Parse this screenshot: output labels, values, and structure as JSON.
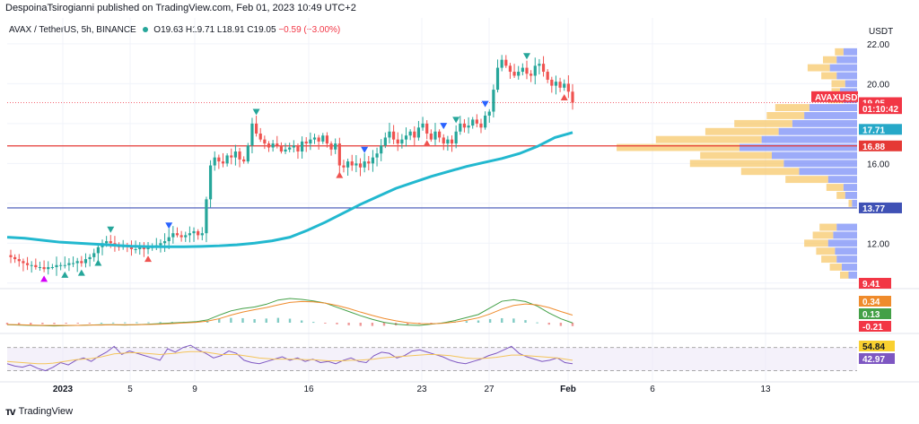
{
  "header": {
    "caption": "DespoinaTsirogianni published on TradingView.com, Feb 01, 2023 10:49 UTC+2",
    "symbol": "AVAX / TetherUS, 5h, BINANCE",
    "open": "O19.63",
    "high": "H19.71",
    "low": "L18.91",
    "close": "C19.05",
    "change": "−0.59 (−3.00%)"
  },
  "footer": {
    "logo_text": "TradingView"
  },
  "colors": {
    "up": "#26a69a",
    "down": "#ef5350",
    "ma": "#22b8cf",
    "support_red": "#e53935",
    "support_blue": "#3f51b5",
    "macd_line": "#43a047",
    "signal_line": "#ef8b2c",
    "rsi_line": "#7e57c2",
    "rsi_ma": "#f4c45a",
    "grid": "#f0f3fa"
  },
  "chart_data": [
    {
      "type": "candlestick",
      "panel": "price",
      "y_axis_title": "USDT",
      "ylim": [
        9.9,
        22.4
      ],
      "yticks": [
        "22.00",
        "20.00",
        "16.00",
        "12.00"
      ],
      "xticks": [
        "2023",
        "5",
        "9",
        "16",
        "23",
        "27",
        "Feb",
        "6",
        "13"
      ],
      "closes": [
        11.3,
        11.2,
        11.1,
        11.0,
        10.9,
        10.9,
        10.8,
        10.8,
        10.7,
        10.8,
        10.8,
        10.9,
        10.9,
        10.9,
        11.0,
        11.0,
        11.1,
        11.0,
        11.2,
        11.3,
        11.5,
        11.8,
        12.0,
        12.1,
        12.0,
        11.9,
        11.8,
        11.9,
        11.8,
        11.7,
        11.7,
        11.8,
        11.7,
        11.8,
        11.8,
        11.9,
        12.0,
        12.1,
        12.3,
        12.5,
        12.4,
        12.3,
        12.4,
        12.5,
        12.6,
        12.4,
        12.5,
        14.2,
        15.9,
        16.3,
        16.1,
        16.0,
        16.4,
        16.3,
        16.6,
        16.2,
        16.1,
        16.9,
        18.0,
        17.5,
        17.2,
        17.0,
        16.8,
        17.0,
        16.9,
        16.6,
        16.7,
        16.8,
        16.9,
        16.6,
        17.1,
        17.0,
        17.2,
        17.3,
        17.1,
        17.4,
        17.0,
        16.7,
        17.0,
        15.9,
        15.8,
        16.1,
        15.9,
        16.0,
        15.8,
        16.1,
        16.0,
        16.3,
        16.5,
        16.9,
        17.3,
        17.6,
        17.2,
        17.0,
        17.2,
        17.4,
        17.6,
        17.3,
        17.8,
        18.0,
        17.5,
        17.2,
        17.6,
        17.3,
        17.0,
        17.2,
        17.0,
        17.6,
        18.0,
        17.8,
        17.9,
        18.2,
        18.0,
        17.8,
        18.4,
        18.6,
        19.7,
        20.8,
        21.2,
        20.9,
        20.6,
        20.4,
        20.6,
        20.8,
        20.5,
        20.4,
        20.9,
        21.0,
        20.6,
        20.2,
        19.9,
        20.1,
        19.8,
        20.0,
        19.6,
        19.05
      ],
      "annotations": [],
      "moving_average": [
        12.3,
        12.25,
        12.15,
        12.05,
        12.0,
        11.95,
        11.9,
        11.85,
        11.83,
        11.82,
        11.82,
        11.84,
        11.87,
        11.92,
        12.0,
        12.12,
        12.3,
        12.65,
        13.05,
        13.5,
        13.95,
        14.35,
        14.75,
        15.05,
        15.35,
        15.6,
        15.85,
        16.05,
        16.25,
        16.5,
        16.85,
        17.3,
        17.55
      ],
      "levels": [
        {
          "label": "16.88",
          "value": 16.88,
          "color": "#e53935"
        },
        {
          "label": "13.77",
          "value": 13.77,
          "color": "#3f51b5"
        }
      ],
      "price_labels": [
        {
          "label": "AVAXUSDT",
          "value": 19.35,
          "color": "#f23645"
        },
        {
          "label": "19.05",
          "value": 19.05,
          "color": "#f23645"
        },
        {
          "label": "01:10:42",
          "value": 18.75,
          "color": "#f23645"
        },
        {
          "label": "17.71",
          "value": 17.71,
          "color": "#26a8c8"
        },
        {
          "label": "16.88",
          "value": 16.88,
          "color": "#e53935"
        },
        {
          "label": "13.77",
          "value": 13.77,
          "color": "#3f51b5"
        }
      ],
      "volume_profile": [
        {
          "price": 21.6,
          "up": 0.05,
          "down": 0.08
        },
        {
          "price": 21.2,
          "up": 0.08,
          "down": 0.12
        },
        {
          "price": 20.8,
          "up": 0.13,
          "down": 0.16
        },
        {
          "price": 20.4,
          "up": 0.09,
          "down": 0.12
        },
        {
          "price": 20.0,
          "up": 0.08,
          "down": 0.07
        },
        {
          "price": 19.6,
          "up": 0.05,
          "down": 0.1
        },
        {
          "price": 19.2,
          "up": 0.09,
          "down": 0.08
        },
        {
          "price": 18.8,
          "up": 0.2,
          "down": 0.28
        },
        {
          "price": 18.4,
          "up": 0.22,
          "down": 0.31
        },
        {
          "price": 18.0,
          "up": 0.34,
          "down": 0.38
        },
        {
          "price": 17.6,
          "up": 0.43,
          "down": 0.46
        },
        {
          "price": 17.2,
          "up": 0.62,
          "down": 0.56
        },
        {
          "price": 16.8,
          "up": 0.72,
          "down": 0.69
        },
        {
          "price": 16.4,
          "up": 0.42,
          "down": 0.5
        },
        {
          "price": 16.0,
          "up": 0.55,
          "down": 0.43
        },
        {
          "price": 15.6,
          "up": 0.34,
          "down": 0.34
        },
        {
          "price": 15.2,
          "up": 0.25,
          "down": 0.17
        },
        {
          "price": 14.8,
          "up": 0.1,
          "down": 0.08
        },
        {
          "price": 14.4,
          "up": 0.05,
          "down": 0.07
        },
        {
          "price": 14.0,
          "up": 0.02,
          "down": 0.03
        },
        {
          "price": 12.8,
          "up": 0.1,
          "down": 0.12
        },
        {
          "price": 12.4,
          "up": 0.12,
          "down": 0.14
        },
        {
          "price": 12.0,
          "up": 0.14,
          "down": 0.17
        },
        {
          "price": 11.6,
          "up": 0.11,
          "down": 0.13
        },
        {
          "price": 11.2,
          "up": 0.09,
          "down": 0.12
        },
        {
          "price": 10.8,
          "up": 0.07,
          "down": 0.09
        },
        {
          "price": 10.4,
          "up": 0.05,
          "down": 0.05
        }
      ]
    },
    {
      "type": "line",
      "panel": "macd",
      "ylim": [
        -0.5,
        10.2
      ],
      "tick_labels": [
        "9.41",
        "0.34",
        "0.13",
        "-0.21"
      ],
      "series": [
        {
          "values": [
            0.6,
            0.5,
            0.4,
            0.3,
            0.2,
            0.3,
            0.4,
            0.5,
            0.6,
            0.6,
            0.5,
            0.6,
            0.8,
            1.0,
            1.2,
            1.4,
            1.6,
            2.2,
            3.8,
            5.2,
            6.0,
            6.5,
            7.4,
            8.8,
            9.3,
            9.0,
            8.5,
            7.8,
            6.4,
            5.0,
            3.6,
            2.4,
            1.4,
            0.8,
            0.5,
            0.4,
            0.8,
            1.2,
            2.0,
            3.0,
            4.0,
            6.2,
            8.4,
            8.9,
            8.3,
            6.8,
            4.5,
            2.6,
            1.2
          ]
        },
        {
          "values": [
            0.7,
            0.6,
            0.5,
            0.4,
            0.4,
            0.4,
            0.4,
            0.5,
            0.5,
            0.6,
            0.6,
            0.6,
            0.7,
            0.8,
            1.0,
            1.2,
            1.4,
            1.8,
            2.6,
            3.8,
            4.8,
            5.6,
            6.3,
            7.2,
            8.0,
            8.3,
            8.2,
            7.8,
            7.0,
            6.0,
            4.8,
            3.7,
            2.7,
            1.9,
            1.3,
            1.0,
            0.9,
            1.1,
            1.5,
            2.1,
            2.9,
            4.2,
            5.8,
            7.0,
            7.5,
            7.2,
            6.3,
            5.0,
            3.8
          ]
        }
      ],
      "histogram": [
        -0.12,
        -0.1,
        -0.11,
        -0.09,
        -0.08,
        -0.06,
        -0.04,
        -0.02,
        0.0,
        0.01,
        0.02,
        0.03,
        0.03,
        0.04,
        0.05,
        0.06,
        0.05,
        0.08,
        0.25,
        0.3,
        0.28,
        0.22,
        0.26,
        0.3,
        0.25,
        0.14,
        0.05,
        -0.02,
        -0.1,
        -0.16,
        -0.2,
        -0.2,
        -0.19,
        -0.17,
        -0.13,
        -0.09,
        -0.04,
        0.02,
        0.06,
        0.1,
        0.14,
        0.22,
        0.28,
        0.26,
        0.16,
        0.02,
        -0.12,
        -0.2,
        -0.21
      ]
    },
    {
      "type": "line",
      "panel": "rsi",
      "ylim": [
        20,
        85
      ],
      "tick_labels": [
        "54.84",
        "42.97"
      ],
      "bands": [
        70,
        30
      ],
      "series": [
        {
          "values": [
            42,
            38,
            36,
            40,
            34,
            30,
            36,
            44,
            40,
            48,
            52,
            46,
            55,
            62,
            72,
            58,
            64,
            60,
            56,
            52,
            48,
            68,
            62,
            70,
            74,
            66,
            60,
            52,
            56,
            64,
            60,
            48,
            44,
            42,
            46,
            50,
            54,
            48,
            52,
            46,
            50,
            44,
            46,
            42,
            48,
            52,
            46,
            44,
            56,
            62,
            60,
            52,
            56,
            64,
            66,
            62,
            58,
            54,
            48,
            44,
            42,
            46,
            50,
            56,
            60,
            66,
            72,
            60,
            54,
            50,
            46,
            48,
            52,
            44,
            42
          ]
        },
        {
          "values": [
            46,
            45,
            44,
            43,
            42,
            42,
            43,
            45,
            47,
            49,
            50,
            51,
            53,
            56,
            59,
            60,
            61,
            61,
            60,
            59,
            58,
            59,
            60,
            62,
            63,
            63,
            62,
            60,
            58,
            58,
            58,
            56,
            54,
            52,
            51,
            50,
            50,
            50,
            50,
            49,
            49,
            48,
            47,
            47,
            47,
            48,
            48,
            49,
            50,
            52,
            53,
            54,
            55,
            56,
            57,
            58,
            58,
            57,
            56,
            54,
            52,
            51,
            51,
            52,
            53,
            55,
            57,
            57,
            56,
            55,
            54,
            53,
            52,
            50,
            48
          ]
        }
      ]
    }
  ]
}
